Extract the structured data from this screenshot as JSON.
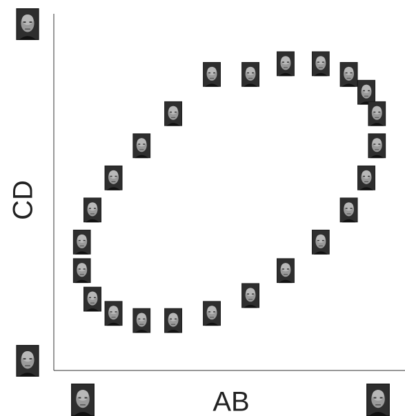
{
  "chart_data": {
    "type": "scatter",
    "x_label": "AB",
    "y_label": "CD",
    "xlim": [
      0,
      1
    ],
    "ylim": [
      0,
      1
    ],
    "x": [
      0.56,
      0.66,
      0.76,
      0.84,
      0.89,
      0.92,
      0.92,
      0.89,
      0.84,
      0.76,
      0.66,
      0.56,
      0.45,
      0.34,
      0.25,
      0.17,
      0.11,
      0.08,
      0.08,
      0.11,
      0.17,
      0.25,
      0.34,
      0.45
    ],
    "y": [
      0.83,
      0.86,
      0.86,
      0.83,
      0.78,
      0.72,
      0.63,
      0.54,
      0.45,
      0.36,
      0.28,
      0.21,
      0.16,
      0.14,
      0.14,
      0.16,
      0.2,
      0.28,
      0.36,
      0.45,
      0.54,
      0.63,
      0.72,
      0.83
    ]
  }
}
